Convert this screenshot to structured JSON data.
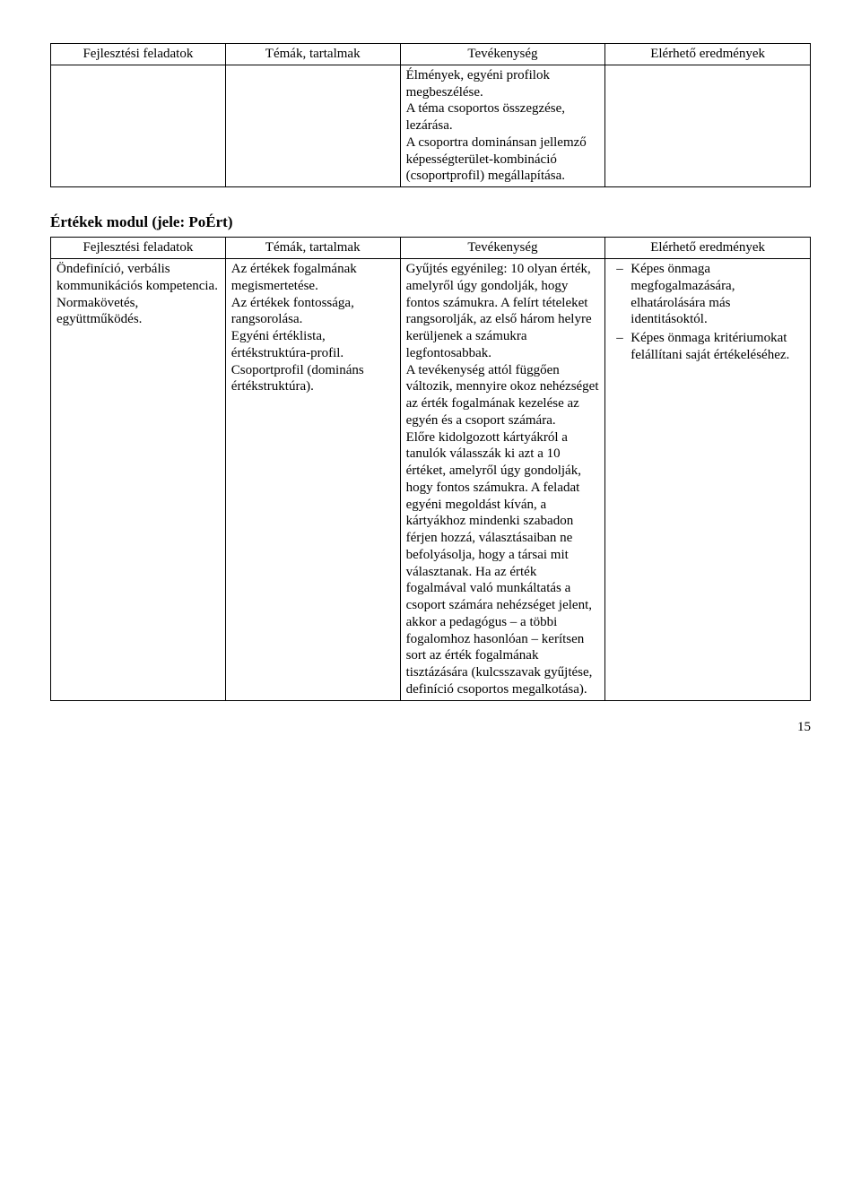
{
  "table1": {
    "headers": [
      "Fejlesztési feladatok",
      "Témák, tartalmak",
      "Tevékenység",
      "Elérhető eredmények"
    ],
    "row": {
      "col1": "",
      "col2": "",
      "col3": "Élmények, egyéni profilok megbeszélése.\nA téma csoportos összegzése, lezárása.\nA csoportra dominánsan jellemző képességterület-kombináció (csoportprofil) megállapítása.",
      "col4": ""
    }
  },
  "section_title": "Értékek modul (jele: PoÉrt)",
  "table2": {
    "headers": [
      "Fejlesztési feladatok",
      "Témák, tartalmak",
      "Tevékenység",
      "Elérhető eredmények"
    ],
    "row": {
      "col1": "Öndefiníció, verbális kommunikációs kompetencia. Normakövetés, együttműködés.",
      "col2": "Az értékek fogalmának megismertetése.\nAz értékek fontossága, rangsorolása.\nEgyéni értéklista, értékstruktúra-profil.\nCsoportprofil (domináns értékstruktúra).",
      "col3": "Gyűjtés egyénileg: 10 olyan érték, amelyről úgy gondolják, hogy fontos számukra. A felírt tételeket rangsorolják, az első három helyre kerüljenek a számukra legfontosabbak.\nA tevékenység attól függően változik, mennyire okoz nehézséget az érték fogalmának kezelése az egyén és a csoport számára.\nElőre kidolgozott kártyákról a tanulók válasszák ki azt a 10 értéket, amelyről úgy gondolják, hogy fontos számukra. A feladat egyéni megoldást kíván, a kártyákhoz mindenki szabadon férjen hozzá, választásaiban ne befolyásolja, hogy a társai mit választanak. Ha az érték fogalmával való munkáltatás a csoport számára nehézséget jelent, akkor a pedagógus – a többi fogalomhoz hasonlóan – kerítsen sort az érték fogalmának tisztázására (kulcsszavak gyűjtése, definíció csoportos megalkotása).",
      "outcomes": [
        "Képes önmaga megfogalmazására, elhatárolására más identitásoktól.",
        "Képes önmaga kritériumokat felállítani saját értékeléséhez."
      ]
    }
  },
  "page_number": "15"
}
